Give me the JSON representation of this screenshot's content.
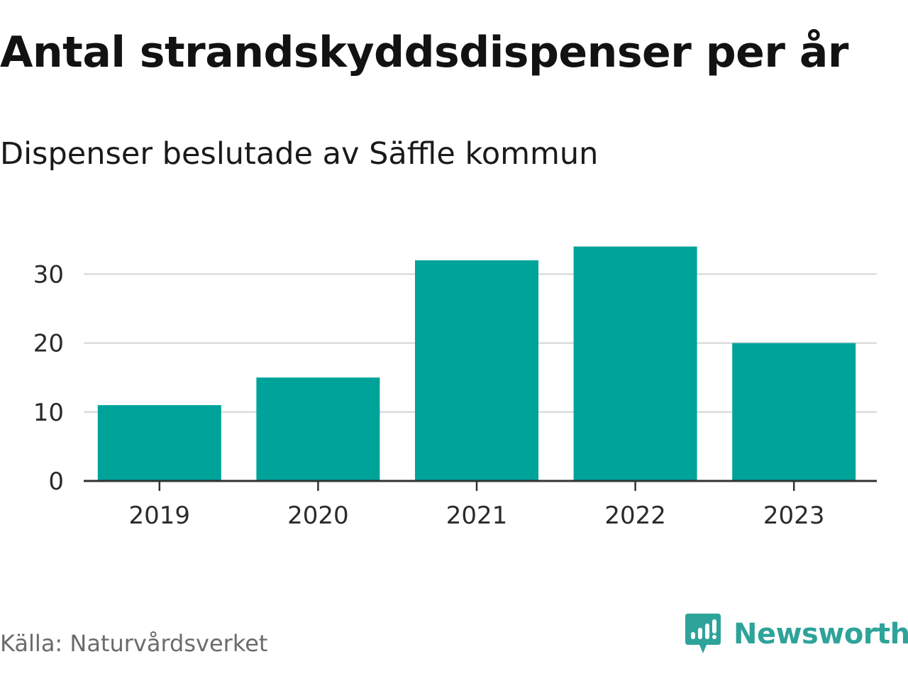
{
  "chart_data": {
    "type": "bar",
    "title": "Antal strandskyddsdispenser per år",
    "subtitle": "Dispenser beslutade av Säffle kommun",
    "categories": [
      "2019",
      "2020",
      "2021",
      "2022",
      "2023"
    ],
    "values": [
      11,
      15,
      32,
      34,
      20
    ],
    "xlabel": "",
    "ylabel": "",
    "ylim": [
      0,
      36
    ],
    "yticks": [
      0,
      10,
      20,
      30
    ],
    "ytick_labels": [
      "0",
      "10",
      "20",
      "30"
    ],
    "grid": true,
    "bar_color": "#00a39a"
  },
  "footer": {
    "source": "Källa: Naturvårdsverket",
    "brand": "Newsworthy",
    "brand_icon": "newsworthy-logo-icon",
    "brand_color": "#2ea39a"
  }
}
